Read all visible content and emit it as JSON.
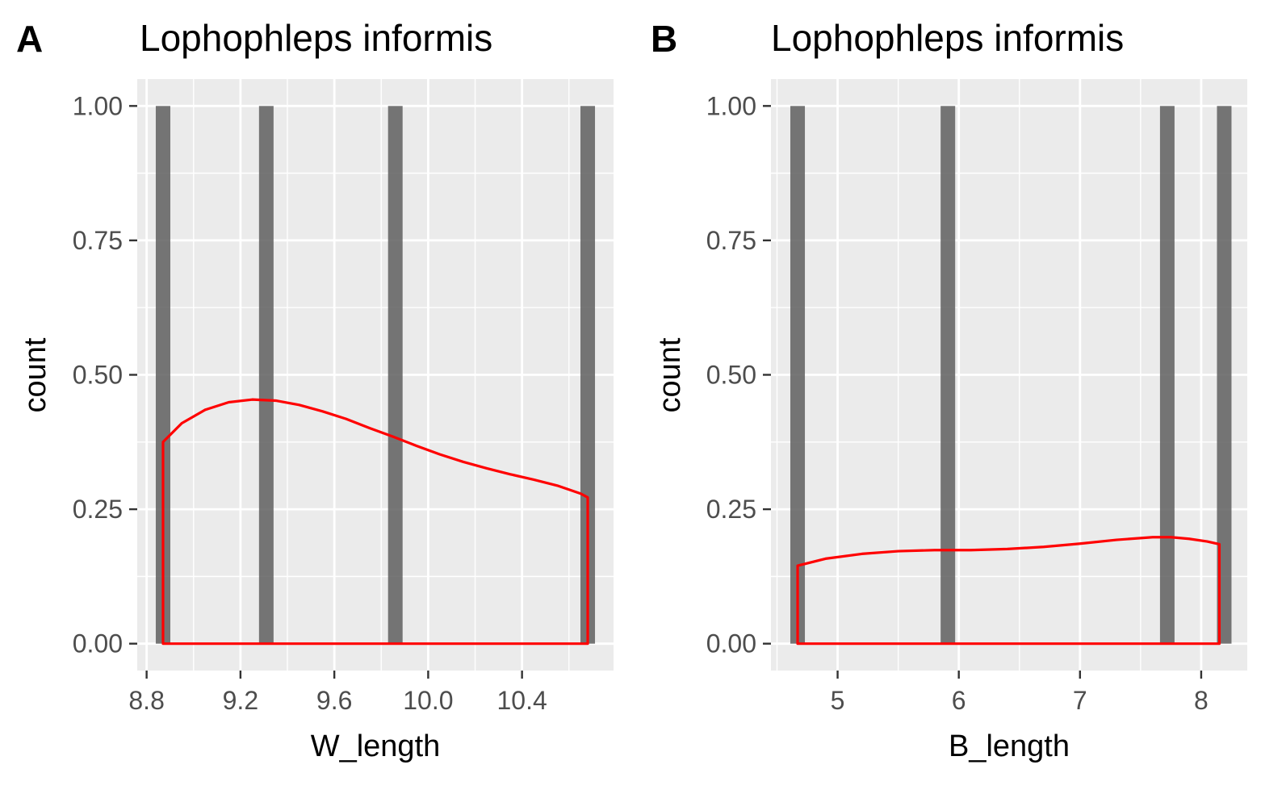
{
  "chart_data": [
    {
      "tag": "A",
      "type": "bar",
      "title": "Lophophleps informis",
      "xlabel": "W_length",
      "ylabel": "count",
      "xlim": [
        8.76,
        10.79
      ],
      "ylim": [
        -0.05,
        1.05
      ],
      "x_ticks": [
        8.8,
        9.2,
        9.6,
        10.0,
        10.4
      ],
      "x_tick_labels": [
        "8.8",
        "9.2",
        "9.6",
        "10.0",
        "10.4"
      ],
      "y_ticks": [
        0,
        0.25,
        0.5,
        0.75,
        1.0
      ],
      "y_tick_labels": [
        "0.00",
        "0.25",
        "0.50",
        "0.75",
        "1.00"
      ],
      "bar_width": 0.062,
      "bars": [
        {
          "x": 8.87,
          "count": 1
        },
        {
          "x": 9.31,
          "count": 1
        },
        {
          "x": 9.86,
          "count": 1
        },
        {
          "x": 10.68,
          "count": 1
        }
      ],
      "density": {
        "x": [
          8.87,
          8.95,
          9.05,
          9.15,
          9.25,
          9.35,
          9.45,
          9.55,
          9.65,
          9.75,
          9.85,
          9.95,
          10.05,
          10.15,
          10.25,
          10.35,
          10.45,
          10.55,
          10.65,
          10.68
        ],
        "y": [
          0.375,
          0.41,
          0.435,
          0.449,
          0.454,
          0.452,
          0.444,
          0.432,
          0.418,
          0.401,
          0.385,
          0.368,
          0.352,
          0.338,
          0.326,
          0.315,
          0.305,
          0.294,
          0.279,
          0.272
        ]
      },
      "grid": true,
      "colors": {
        "panel": "#ebebeb",
        "grid": "#ffffff",
        "bar": "#595959",
        "density": "#ff0000"
      }
    },
    {
      "tag": "B",
      "type": "bar",
      "title": "Lophophleps informis",
      "xlabel": "B_length",
      "ylabel": "count",
      "xlim": [
        4.45,
        8.38
      ],
      "ylim": [
        -0.05,
        1.05
      ],
      "x_ticks": [
        5,
        6,
        7,
        8
      ],
      "x_tick_labels": [
        "5",
        "6",
        "7",
        "8"
      ],
      "y_ticks": [
        0,
        0.25,
        0.5,
        0.75,
        1.0
      ],
      "y_tick_labels": [
        "0.00",
        "0.25",
        "0.50",
        "0.75",
        "1.00"
      ],
      "bar_width": 0.12,
      "bars": [
        {
          "x": 4.67,
          "count": 1
        },
        {
          "x": 5.91,
          "count": 1
        },
        {
          "x": 7.72,
          "count": 1
        },
        {
          "x": 8.19,
          "count": 1
        }
      ],
      "density": {
        "x": [
          4.67,
          4.9,
          5.2,
          5.5,
          5.8,
          6.1,
          6.4,
          6.7,
          7.0,
          7.3,
          7.6,
          7.75,
          7.9,
          8.05,
          8.15
        ],
        "y": [
          0.145,
          0.158,
          0.167,
          0.172,
          0.174,
          0.174,
          0.176,
          0.18,
          0.186,
          0.193,
          0.198,
          0.198,
          0.195,
          0.19,
          0.185
        ]
      },
      "grid": true,
      "colors": {
        "panel": "#ebebeb",
        "grid": "#ffffff",
        "bar": "#595959",
        "density": "#ff0000"
      }
    }
  ]
}
